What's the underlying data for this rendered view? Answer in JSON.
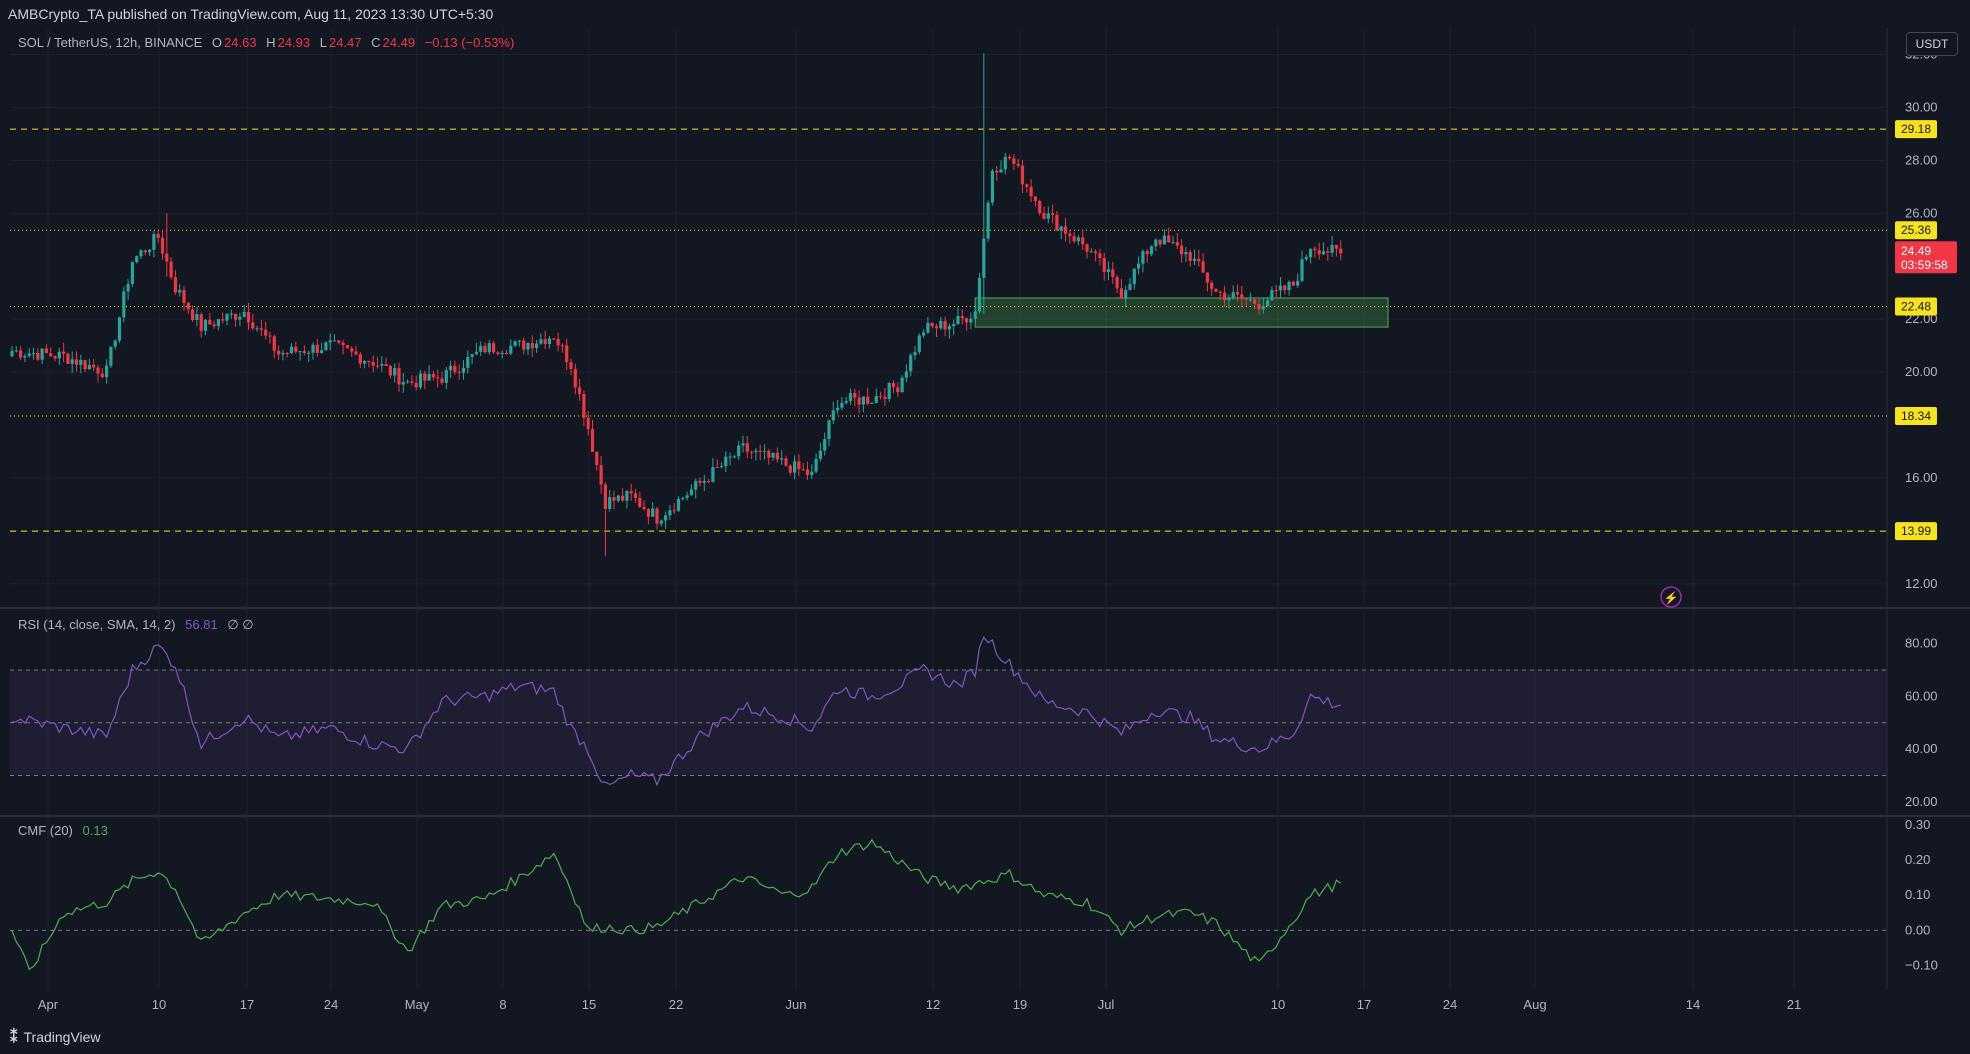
{
  "header": {
    "published": "AMBCrypto_TA published on TradingView.com, Aug 11, 2023 13:30 UTC+5:30"
  },
  "unit_button": "USDT",
  "legend": {
    "symbol": "SOL / TetherUS, 12h, BINANCE",
    "o_label": "O",
    "o_value": "24.63",
    "h_label": "H",
    "h_value": "24.93",
    "l_label": "L",
    "l_value": "24.47",
    "c_label": "C",
    "c_value": "24.49",
    "change": "−0.13 (−0.53%)"
  },
  "rsi_legend": {
    "label": "RSI (14, close, SMA, 14, 2)",
    "value": "56.81",
    "extra": "∅ ∅"
  },
  "cmf_legend": {
    "label": "CMF (20)",
    "value": "0.13"
  },
  "footer": {
    "brand": "TradingView"
  },
  "colors": {
    "up": "#26a69a",
    "down": "#f23645",
    "level": "#f7e31b",
    "rsi": "#7e57c2",
    "cmf": "#4caf50",
    "zone": "#4caf50",
    "price_tag": "#f23645"
  },
  "chart_data": [
    {
      "type": "candlestick",
      "title": "SOL / TetherUS, 12h, BINANCE",
      "x_tick_labels": [
        "Apr",
        "10",
        "17",
        "24",
        "May",
        "8",
        "15",
        "22",
        "Jun",
        "12",
        "19",
        "Jul",
        "10",
        "17",
        "24",
        "Aug",
        "14",
        "21"
      ],
      "y_ticks": [
        "32.00",
        "30.00",
        "28.00",
        "26.00",
        "22.00",
        "20.00",
        "16.00",
        "14.00",
        "12.00"
      ],
      "ylim": [
        11.2,
        33
      ],
      "path_knots": [
        [
          0,
          20.8
        ],
        [
          12,
          20.6
        ],
        [
          22,
          20.0
        ],
        [
          28,
          24.2
        ],
        [
          34,
          25.1
        ],
        [
          38,
          23.2
        ],
        [
          44,
          21.7
        ],
        [
          54,
          22.3
        ],
        [
          62,
          20.7
        ],
        [
          74,
          21.0
        ],
        [
          84,
          20.4
        ],
        [
          92,
          19.6
        ],
        [
          100,
          19.8
        ],
        [
          110,
          20.9
        ],
        [
          118,
          21.0
        ],
        [
          126,
          21.4
        ],
        [
          130,
          20.3
        ],
        [
          134,
          17.9
        ],
        [
          138,
          15.1
        ],
        [
          144,
          15.3
        ],
        [
          150,
          14.5
        ],
        [
          160,
          15.8
        ],
        [
          170,
          17.1
        ],
        [
          180,
          16.5
        ],
        [
          186,
          16.1
        ],
        [
          192,
          18.9
        ],
        [
          200,
          19.0
        ],
        [
          206,
          19.5
        ],
        [
          212,
          21.6
        ],
        [
          220,
          21.9
        ],
        [
          224,
          22.3
        ],
        [
          226,
          25.1
        ],
        [
          228,
          27.7
        ],
        [
          232,
          28.1
        ],
        [
          240,
          26.0
        ],
        [
          250,
          24.7
        ],
        [
          258,
          23.0
        ],
        [
          266,
          25.1
        ],
        [
          274,
          24.4
        ],
        [
          280,
          23.0
        ],
        [
          290,
          22.6
        ],
        [
          298,
          23.3
        ],
        [
          302,
          24.8
        ],
        [
          308,
          24.49
        ]
      ],
      "extreme_wicks": [
        {
          "index": 226,
          "high": 32.05,
          "low": 22.2
        },
        {
          "index": 138,
          "high": 15.4,
          "low": 13.05
        },
        {
          "index": 36,
          "high": 26.0,
          "low": 23.6
        }
      ],
      "last_close": 24.49,
      "levels": [
        {
          "value": 29.18,
          "label": "29.18",
          "style": "dashed"
        },
        {
          "value": 25.36,
          "label": "25.36",
          "style": "dotted"
        },
        {
          "value": 22.48,
          "label": "22.48",
          "style": "dotted"
        },
        {
          "value": 18.34,
          "label": "18.34",
          "style": "dotted"
        },
        {
          "value": 13.99,
          "label": "13.99",
          "style": "dashed"
        }
      ],
      "price_tag": {
        "value": "24.49",
        "countdown": "03:59:58"
      },
      "support_zone": {
        "from_index": 224,
        "to_index": 320,
        "low": 21.7,
        "high": 22.8
      }
    },
    {
      "type": "line",
      "title": "RSI (14, close, SMA, 14, 2)",
      "ylim": [
        15,
        92
      ],
      "y_ticks": [
        "80.00",
        "60.00",
        "40.00",
        "20.00"
      ],
      "band": [
        30,
        70
      ],
      "midline": 50,
      "knots": [
        [
          0,
          52
        ],
        [
          12,
          48
        ],
        [
          22,
          45
        ],
        [
          28,
          70
        ],
        [
          34,
          79
        ],
        [
          38,
          72
        ],
        [
          44,
          42
        ],
        [
          54,
          52
        ],
        [
          62,
          44
        ],
        [
          74,
          48
        ],
        [
          84,
          42
        ],
        [
          92,
          40
        ],
        [
          100,
          58
        ],
        [
          110,
          60
        ],
        [
          118,
          64
        ],
        [
          126,
          62
        ],
        [
          130,
          48
        ],
        [
          134,
          40
        ],
        [
          138,
          25
        ],
        [
          144,
          30
        ],
        [
          150,
          28
        ],
        [
          160,
          45
        ],
        [
          170,
          56
        ],
        [
          180,
          52
        ],
        [
          186,
          48
        ],
        [
          192,
          63
        ],
        [
          200,
          60
        ],
        [
          206,
          64
        ],
        [
          212,
          70
        ],
        [
          220,
          64
        ],
        [
          224,
          70
        ],
        [
          226,
          84
        ],
        [
          228,
          80
        ],
        [
          232,
          72
        ],
        [
          240,
          58
        ],
        [
          250,
          54
        ],
        [
          258,
          46
        ],
        [
          266,
          55
        ],
        [
          274,
          52
        ],
        [
          280,
          44
        ],
        [
          290,
          40
        ],
        [
          298,
          46
        ],
        [
          302,
          60
        ],
        [
          308,
          57
        ]
      ]
    },
    {
      "type": "line",
      "title": "CMF (20)",
      "ylim": [
        -0.17,
        0.32
      ],
      "y_ticks": [
        "0.30",
        "0.20",
        "0.10",
        "0.00",
        "−0.10"
      ],
      "zero_line": 0,
      "knots": [
        [
          0,
          0.0
        ],
        [
          4,
          -0.12
        ],
        [
          12,
          0.05
        ],
        [
          22,
          0.08
        ],
        [
          28,
          0.14
        ],
        [
          34,
          0.17
        ],
        [
          38,
          0.12
        ],
        [
          44,
          -0.04
        ],
        [
          54,
          0.05
        ],
        [
          62,
          0.1
        ],
        [
          74,
          0.09
        ],
        [
          84,
          0.08
        ],
        [
          92,
          -0.06
        ],
        [
          100,
          0.07
        ],
        [
          110,
          0.09
        ],
        [
          118,
          0.15
        ],
        [
          126,
          0.22
        ],
        [
          130,
          0.12
        ],
        [
          134,
          0.0
        ],
        [
          138,
          0.01
        ],
        [
          144,
          0.0
        ],
        [
          150,
          0.01
        ],
        [
          160,
          0.08
        ],
        [
          170,
          0.15
        ],
        [
          180,
          0.1
        ],
        [
          186,
          0.12
        ],
        [
          192,
          0.22
        ],
        [
          200,
          0.25
        ],
        [
          206,
          0.2
        ],
        [
          212,
          0.15
        ],
        [
          220,
          0.12
        ],
        [
          226,
          0.14
        ],
        [
          232,
          0.16
        ],
        [
          240,
          0.1
        ],
        [
          250,
          0.08
        ],
        [
          258,
          0.0
        ],
        [
          266,
          0.04
        ],
        [
          274,
          0.05
        ],
        [
          280,
          0.02
        ],
        [
          290,
          -0.1
        ],
        [
          298,
          0.03
        ],
        [
          302,
          0.1
        ],
        [
          308,
          0.13
        ]
      ]
    }
  ]
}
